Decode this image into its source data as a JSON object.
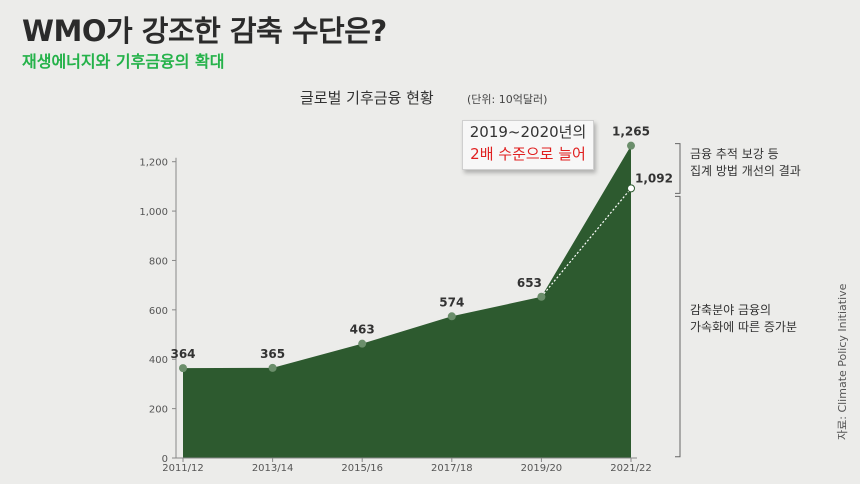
{
  "headline": "WMO가 강조한 감축 수단은?",
  "subheadline": "재생에너지와 기후금융의 확대",
  "source": "자료: Climate Policy Initiative",
  "callout": {
    "line1": "2019~2020년의",
    "line2": "2배 수준으로 늘어"
  },
  "notes": {
    "top_line1": "금융 추적 보강 등",
    "top_line2": "집계 방법 개선의 결과",
    "bottom_line1": "감축분야 금융의",
    "bottom_line2": "가속화에 따른 증가분"
  },
  "colors": {
    "area": "#2d5a2f",
    "point": "#6b8e6b",
    "headline": "#2b2b2b",
    "subheadline": "#25b24a",
    "callout_highlight": "#e02020"
  },
  "chart_data": {
    "type": "area",
    "title": "글로벌 기후금융 현황",
    "unit": "(단위: 10억달러)",
    "categories": [
      "2011/12",
      "2013/14",
      "2015/16",
      "2017/18",
      "2019/20",
      "2021/22"
    ],
    "values": [
      364,
      365,
      463,
      574,
      653,
      1265
    ],
    "value_labels": [
      "364",
      "365",
      "463",
      "574",
      "653",
      "1,265"
    ],
    "adjusted_value": 1092,
    "adjusted_label": "1,092",
    "yticks": [
      "0",
      "200",
      "400",
      "600",
      "800",
      "1,000",
      "1,200"
    ],
    "ytick_values": [
      0,
      200,
      400,
      600,
      800,
      1000,
      1200
    ],
    "ylim": [
      0,
      1300
    ],
    "grid": false,
    "legend": "none"
  }
}
